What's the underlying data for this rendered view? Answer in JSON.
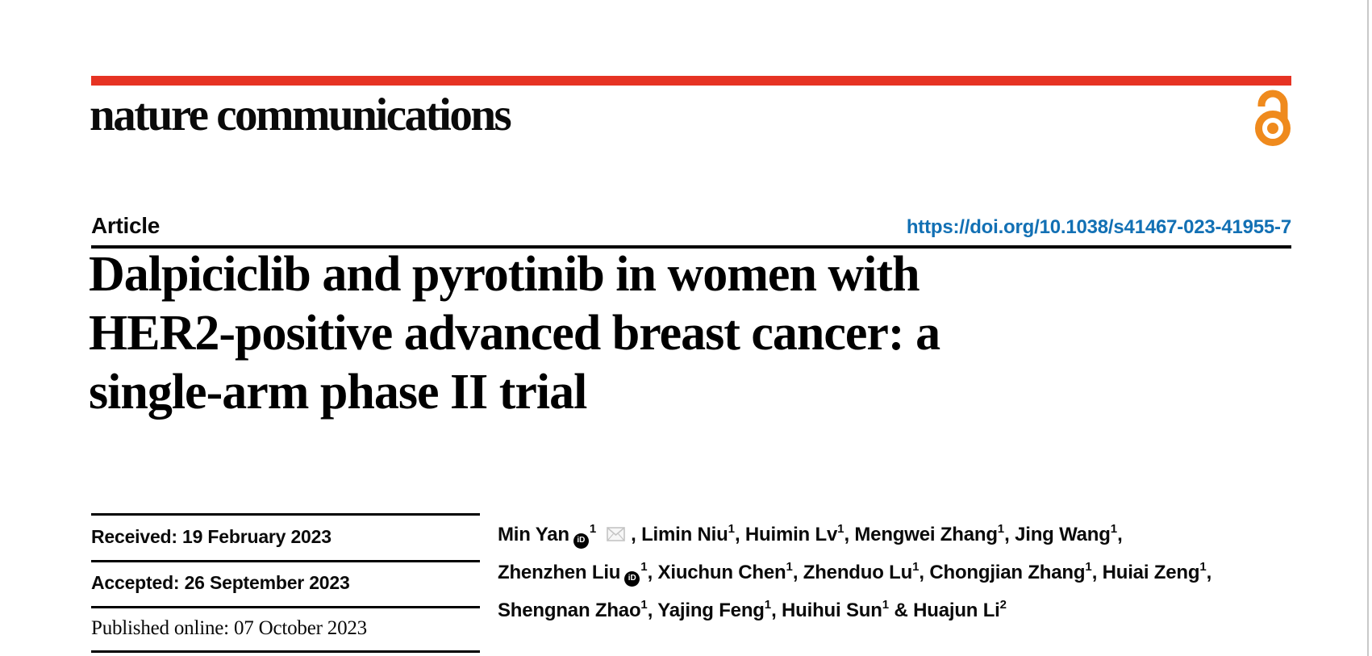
{
  "brand": {
    "wordmark": "nature communications",
    "open_access_icon": "open-padlock"
  },
  "colors": {
    "brand_red": "#e63323",
    "open_access_orange": "#ef8a1d",
    "link_blue": "#1270b4"
  },
  "article_label": "Article",
  "doi": "https://doi.org/10.1038/s41467-023-41955-7",
  "title_lines": [
    "Dalpiciclib and pyrotinib in women with",
    "HER2-positive advanced breast cancer: a",
    "single-arm phase II trial"
  ],
  "history": [
    {
      "text": "Received: 19 February 2023"
    },
    {
      "text": "Accepted: 26 September 2023"
    },
    {
      "text": "Published online: 07 October 2023"
    }
  ],
  "authors": {
    "orcid_glyph": "iD",
    "lines": [
      [
        {
          "name": "Min Yan",
          "orcid": true,
          "sup": "1",
          "email": true,
          "trail": ", "
        },
        {
          "name": "Limin Niu",
          "sup": "1",
          "trail": ", "
        },
        {
          "name": "Huimin Lv",
          "sup": "1",
          "trail": ", "
        },
        {
          "name": "Mengwei Zhang",
          "sup": "1",
          "trail": ", "
        },
        {
          "name": "Jing Wang",
          "sup": "1",
          "trail": ","
        }
      ],
      [
        {
          "name": "Zhenzhen Liu",
          "orcid": true,
          "sup": "1",
          "trail": ", "
        },
        {
          "name": "Xiuchun Chen",
          "sup": "1",
          "trail": ", "
        },
        {
          "name": "Zhenduo Lu",
          "sup": "1",
          "trail": ", "
        },
        {
          "name": "Chongjian Zhang",
          "sup": "1",
          "trail": ", "
        },
        {
          "name": "Huiai Zeng",
          "sup": "1",
          "trail": ","
        }
      ],
      [
        {
          "name": "Shengnan Zhao",
          "sup": "1",
          "trail": ", "
        },
        {
          "name": "Yajing Feng",
          "sup": "1",
          "trail": ", "
        },
        {
          "name": "Huihui Sun",
          "sup": "1",
          "trail": " & "
        },
        {
          "name": "Huajun Li",
          "sup": "2",
          "trail": ""
        }
      ]
    ]
  }
}
